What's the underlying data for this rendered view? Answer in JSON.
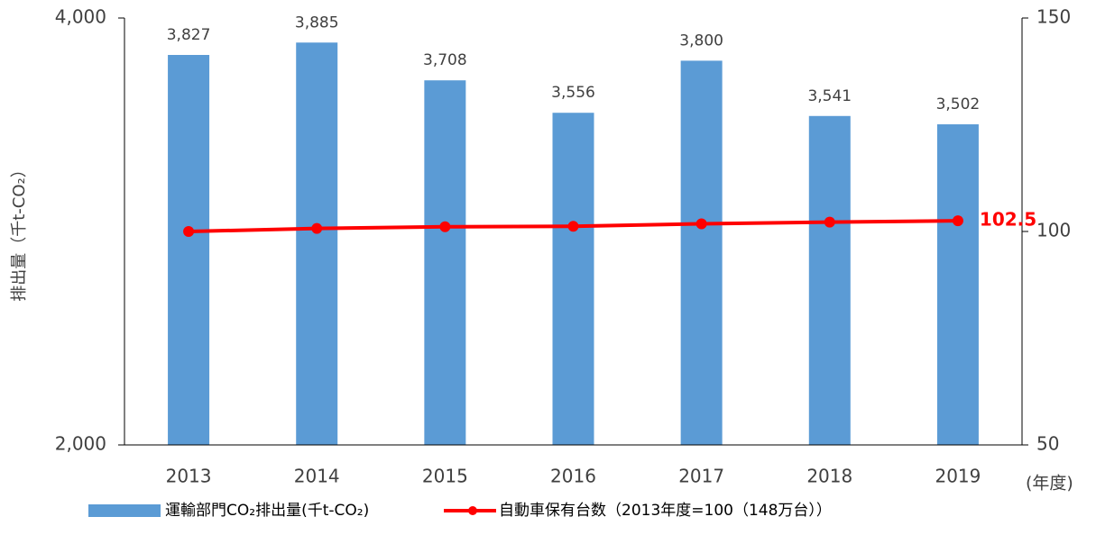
{
  "chart_data": {
    "type": "bar-line",
    "categories": [
      "2013",
      "2014",
      "2015",
      "2016",
      "2017",
      "2018",
      "2019"
    ],
    "x_unit": "(年度)",
    "ylabel": "排出量（千t-CO₂）",
    "series": [
      {
        "name": "運輸部門CO₂排出量(千t-CO₂)",
        "type": "bar",
        "axis": "y",
        "color": "#5b9bd5",
        "values": [
          3827,
          3885,
          3708,
          3556,
          3800,
          3541,
          3502
        ],
        "value_labels": [
          "3,827",
          "3,885",
          "3,708",
          "3,556",
          "3,800",
          "3,541",
          "3,502"
        ]
      },
      {
        "name": "自動車保有台数（2013年度=100（148万台））",
        "type": "line",
        "axis": "y2",
        "color": "#ff0000",
        "values": [
          100,
          100.7,
          101.1,
          101.2,
          101.8,
          102.2,
          102.5
        ]
      }
    ],
    "ylim": [
      2000,
      4000
    ],
    "yticks": [
      {
        "value": 2000,
        "label": "2,000"
      },
      {
        "value": 4000,
        "label": "4,000"
      }
    ],
    "y2lim": [
      50,
      150
    ],
    "y2ticks": [
      50,
      100,
      150
    ],
    "legend": "bottom"
  }
}
